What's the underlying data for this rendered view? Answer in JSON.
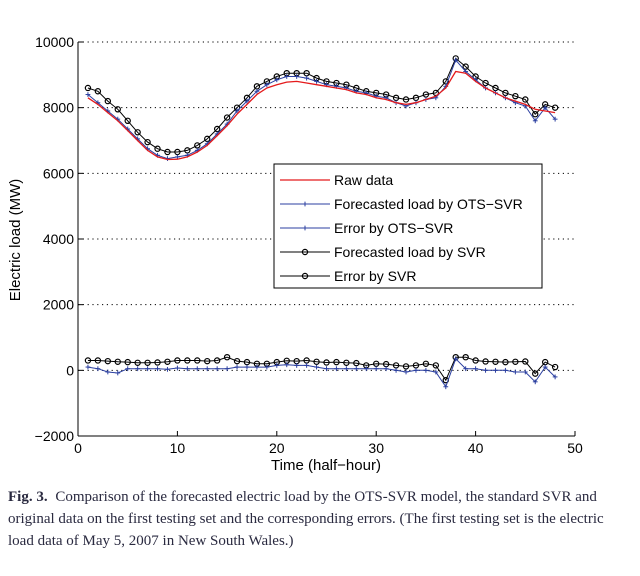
{
  "chart_data": {
    "type": "line",
    "xlabel": "Time (half−hour)",
    "ylabel": "Electric load (MW)",
    "xlim": [
      0,
      50
    ],
    "ylim": [
      -2000,
      10000
    ],
    "xticks": [
      0,
      10,
      20,
      30,
      40,
      50
    ],
    "xtick_labels": [
      "0",
      "10",
      "20",
      "30",
      "40",
      "50"
    ],
    "yticks": [
      -2000,
      0,
      2000,
      4000,
      6000,
      8000,
      10000
    ],
    "ytick_labels": [
      "−2000",
      "0",
      "2000",
      "4000",
      "6000",
      "8000",
      "10000"
    ],
    "grid": "dotted horizontal",
    "legend_position": "center-right",
    "x": [
      1,
      2,
      3,
      4,
      5,
      6,
      7,
      8,
      9,
      10,
      11,
      12,
      13,
      14,
      15,
      16,
      17,
      18,
      19,
      20,
      21,
      22,
      23,
      24,
      25,
      26,
      27,
      28,
      29,
      30,
      31,
      32,
      33,
      34,
      35,
      36,
      37,
      38,
      39,
      40,
      41,
      42,
      43,
      44,
      45,
      46,
      47,
      48
    ],
    "series": [
      {
        "name": "Raw data",
        "color": "#e41a1c",
        "marker": "none",
        "values": [
          8300,
          8100,
          7850,
          7600,
          7300,
          7000,
          6700,
          6500,
          6420,
          6430,
          6500,
          6650,
          6850,
          7150,
          7450,
          7800,
          8100,
          8400,
          8600,
          8700,
          8780,
          8800,
          8750,
          8700,
          8650,
          8600,
          8550,
          8450,
          8400,
          8300,
          8250,
          8150,
          8100,
          8150,
          8250,
          8350,
          8600,
          9100,
          9050,
          8800,
          8600,
          8450,
          8300,
          8200,
          8100,
          7950,
          7900,
          7850
        ]
      },
      {
        "name": "Forecasted load by OTS−SVR",
        "color": "#2b3fa0",
        "marker": "plus",
        "values": [
          8400,
          8150,
          7900,
          7650,
          7350,
          7050,
          6750,
          6550,
          6450,
          6500,
          6550,
          6700,
          6900,
          7200,
          7500,
          7900,
          8200,
          8500,
          8700,
          8850,
          8950,
          8950,
          8900,
          8800,
          8700,
          8650,
          8600,
          8500,
          8450,
          8350,
          8300,
          8150,
          8050,
          8150,
          8250,
          8300,
          8650,
          9450,
          9100,
          8850,
          8600,
          8450,
          8300,
          8150,
          8050,
          7600,
          8000,
          7650
        ]
      },
      {
        "name": "Error by OTS−SVR",
        "color": "#2b3fa0",
        "marker": "plus",
        "values": [
          100,
          50,
          -50,
          -80,
          50,
          50,
          50,
          50,
          30,
          70,
          50,
          50,
          50,
          50,
          50,
          100,
          100,
          100,
          100,
          150,
          170,
          150,
          150,
          100,
          50,
          50,
          50,
          50,
          50,
          50,
          50,
          0,
          -50,
          0,
          0,
          -50,
          -500,
          350,
          50,
          50,
          0,
          0,
          0,
          -50,
          -50,
          -350,
          100,
          -200
        ]
      },
      {
        "name": "Forecasted load by SVR",
        "color": "#000000",
        "marker": "circle",
        "values": [
          8600,
          8500,
          8200,
          7950,
          7600,
          7250,
          6950,
          6750,
          6650,
          6650,
          6700,
          6850,
          7050,
          7350,
          7700,
          8000,
          8300,
          8650,
          8800,
          8950,
          9050,
          9050,
          9050,
          8900,
          8800,
          8750,
          8700,
          8600,
          8500,
          8450,
          8400,
          8300,
          8250,
          8300,
          8400,
          8450,
          8800,
          9500,
          9250,
          8950,
          8750,
          8600,
          8450,
          8350,
          8250,
          7800,
          8100,
          8000
        ]
      },
      {
        "name": "Error by SVR",
        "color": "#000000",
        "marker": "circle",
        "values": [
          300,
          300,
          280,
          260,
          250,
          230,
          230,
          240,
          260,
          300,
          300,
          300,
          280,
          300,
          400,
          280,
          250,
          200,
          200,
          250,
          290,
          280,
          300,
          260,
          240,
          250,
          230,
          220,
          150,
          200,
          190,
          150,
          120,
          150,
          200,
          150,
          -300,
          400,
          400,
          300,
          270,
          260,
          250,
          260,
          270,
          -100,
          250,
          100
        ]
      }
    ]
  },
  "caption": {
    "label": "Fig. 3.",
    "text": "Comparison of the forecasted electric load by the OTS-SVR model, the standard SVR and original data on the first testing set and the corresponding errors. (The first testing set is the electric load data of May 5, 2007 in New South Wales.)"
  }
}
